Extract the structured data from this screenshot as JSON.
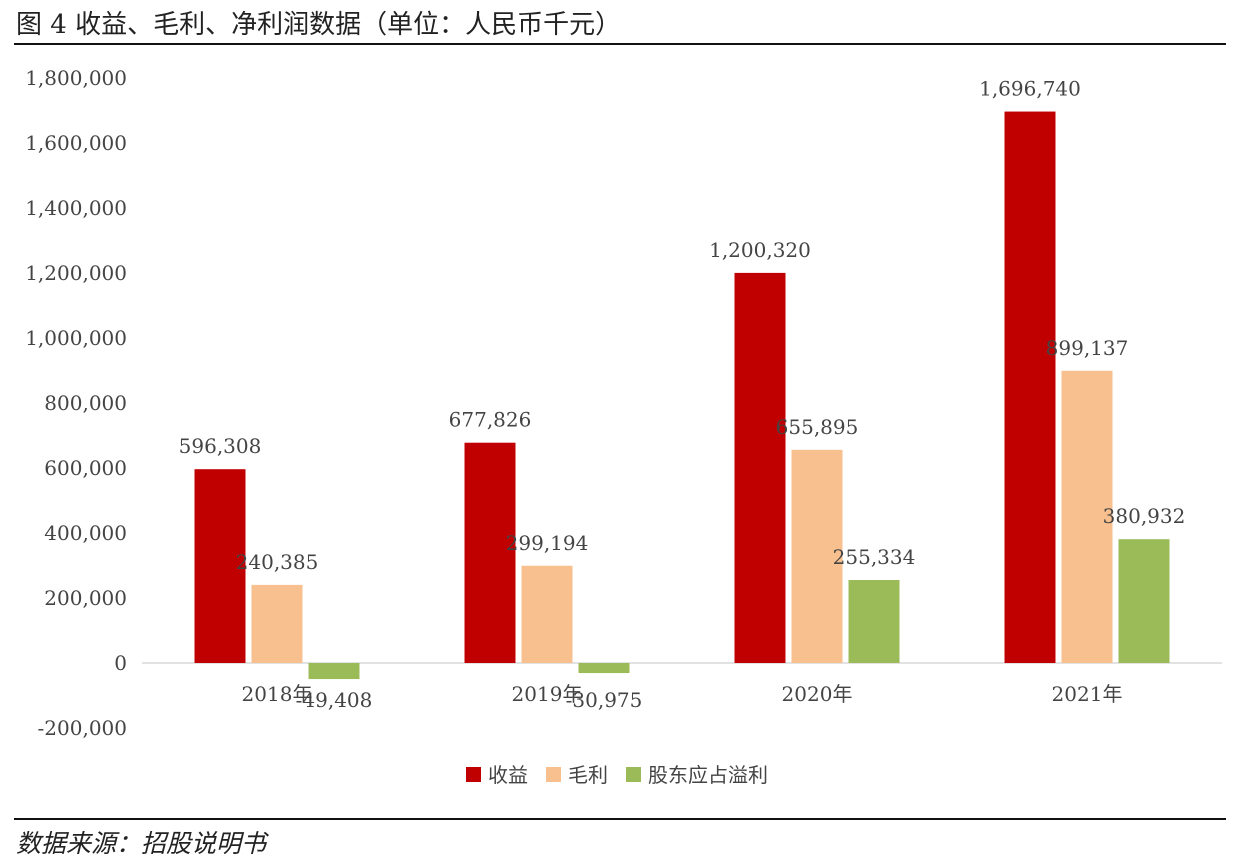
{
  "figure": {
    "title": "图 4 收益、毛利、净利润数据（单位：人民币千元）",
    "source": "数据来源：招股说明书"
  },
  "colors": {
    "revenue": "#C00000",
    "gross_profit": "#F8BF8F",
    "net_profit": "#9BBB59",
    "axis": "#D9D9D9",
    "text": "#444444"
  },
  "chart_data": {
    "type": "bar",
    "categories": [
      "2018年",
      "2019年",
      "2020年",
      "2021年"
    ],
    "series": [
      {
        "name": "收益",
        "values": [
          596308,
          677826,
          1200320,
          1696740
        ],
        "labels": [
          "596,308",
          "677,826",
          "1,200,320",
          "1,696,740"
        ]
      },
      {
        "name": "毛利",
        "values": [
          240385,
          299194,
          655895,
          899137
        ],
        "labels": [
          "240,385",
          "299,194",
          "655,895",
          "899,137"
        ]
      },
      {
        "name": "股东应占溢利",
        "values": [
          -49408,
          -30975,
          255334,
          380932
        ],
        "labels": [
          "-49,408",
          "-30,975",
          "255,334",
          "380,932"
        ]
      }
    ],
    "ylim": [
      -200000,
      1800000
    ],
    "yticks": [
      -200000,
      0,
      200000,
      400000,
      600000,
      800000,
      1000000,
      1200000,
      1400000,
      1600000,
      1800000
    ],
    "ytick_labels": [
      "-200,000",
      "0",
      "200,000",
      "400,000",
      "600,000",
      "800,000",
      "1,000,000",
      "1,200,000",
      "1,400,000",
      "1,600,000",
      "1,800,000"
    ],
    "grid": false,
    "legend_position": "bottom-center",
    "xlabel": "",
    "ylabel": ""
  }
}
